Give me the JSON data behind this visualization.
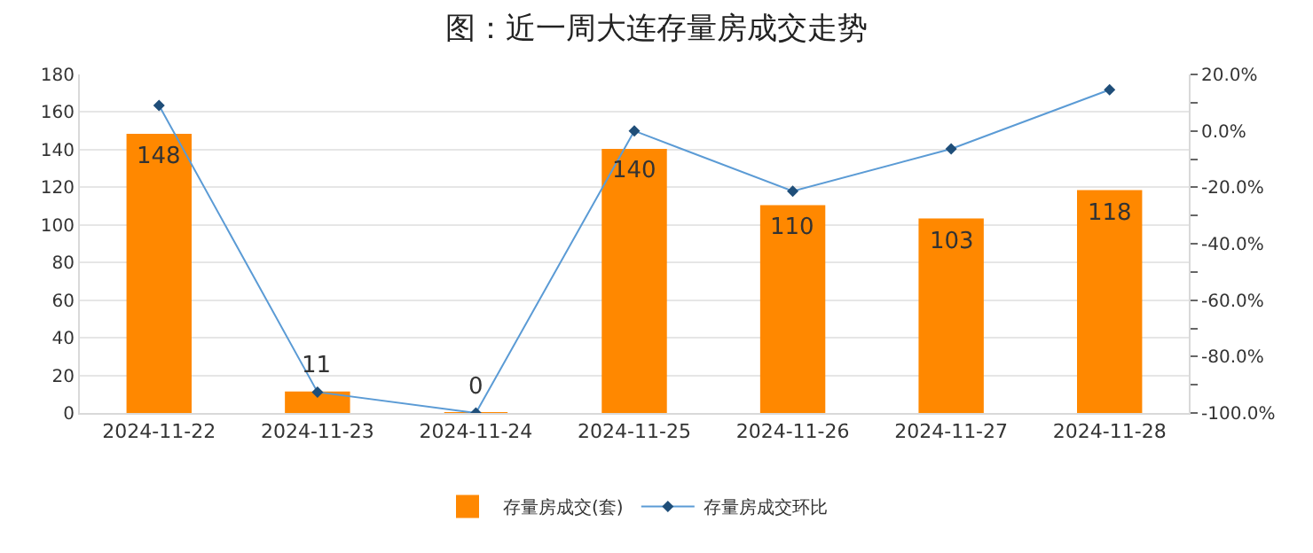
{
  "chart_data": {
    "type": "bar",
    "title": "图：近一周大连存量房成交走势",
    "categories": [
      "2024-11-22",
      "2024-11-23",
      "2024-11-24",
      "2024-11-25",
      "2024-11-26",
      "2024-11-27",
      "2024-11-28"
    ],
    "series": [
      {
        "name": "存量房成交(套)",
        "type": "bar",
        "color": "#ff8800",
        "values": [
          148,
          11,
          0,
          140,
          110,
          103,
          118
        ],
        "data_labels": true
      },
      {
        "name": "存量房成交环比",
        "type": "line",
        "axis": "y2",
        "color": "#5b9bd5",
        "marker": "diamond",
        "values": [
          9,
          -92.6,
          -100,
          0,
          -21.4,
          -6.4,
          14.6
        ]
      }
    ],
    "ylim": [
      0,
      180
    ],
    "yticks": [
      0,
      20,
      40,
      60,
      80,
      100,
      120,
      140,
      160,
      180
    ],
    "y2lim": [
      -100,
      20
    ],
    "y2ticks": [
      {
        "value": 20,
        "label": "20.0%"
      },
      {
        "value": 10,
        "label": null
      },
      {
        "value": 0,
        "label": "0.0%"
      },
      {
        "value": -10,
        "label": null
      },
      {
        "value": -20,
        "label": "-20.0%"
      },
      {
        "value": -30,
        "label": null
      },
      {
        "value": -40,
        "label": "-40.0%"
      },
      {
        "value": -50,
        "label": null
      },
      {
        "value": -60,
        "label": "-60.0%"
      },
      {
        "value": -70,
        "label": null
      },
      {
        "value": -80,
        "label": "-80.0%"
      },
      {
        "value": -90,
        "label": null
      },
      {
        "value": -100,
        "label": "-100.0%"
      }
    ],
    "grid": "y",
    "legend": "bottom"
  }
}
